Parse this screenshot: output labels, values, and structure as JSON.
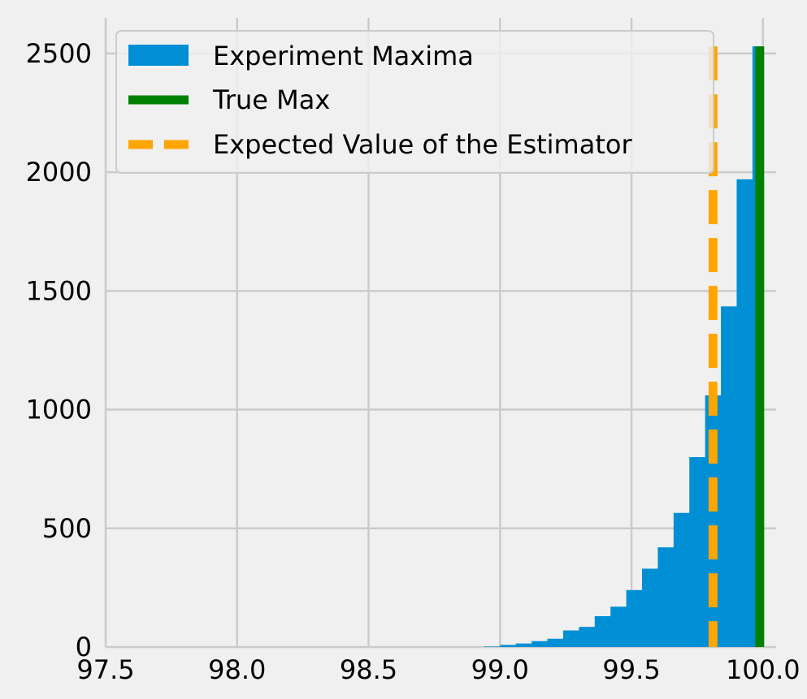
{
  "colors": {
    "background": "#f0f0f0",
    "grid": "#cbcbcb",
    "bars": "#008fd5",
    "true_max": "#008000",
    "expected": "#ffa500",
    "legend_frame": "#cccccc"
  },
  "chart_data": {
    "type": "bar",
    "title": "",
    "xlabel": "",
    "ylabel": "",
    "xlim": [
      97.5,
      100.05
    ],
    "ylim": [
      0,
      2650
    ],
    "x_ticks": [
      "97.5",
      "98.0",
      "98.5",
      "99.0",
      "99.5",
      "100.0"
    ],
    "y_ticks": [
      "0",
      "500",
      "1000",
      "1500",
      "2000",
      "2500"
    ],
    "grid": true,
    "legend_position": "upper-left",
    "series": [
      {
        "name": "Experiment Maxima",
        "type": "histogram",
        "bins": [
          {
            "x0": 98.94,
            "x1": 99.0,
            "count": 2
          },
          {
            "x0": 99.0,
            "x1": 99.06,
            "count": 9
          },
          {
            "x0": 99.06,
            "x1": 99.12,
            "count": 15
          },
          {
            "x0": 99.12,
            "x1": 99.18,
            "count": 25
          },
          {
            "x0": 99.18,
            "x1": 99.24,
            "count": 35
          },
          {
            "x0": 99.24,
            "x1": 99.3,
            "count": 70
          },
          {
            "x0": 99.3,
            "x1": 99.36,
            "count": 85
          },
          {
            "x0": 99.36,
            "x1": 99.42,
            "count": 130
          },
          {
            "x0": 99.42,
            "x1": 99.48,
            "count": 170
          },
          {
            "x0": 99.48,
            "x1": 99.54,
            "count": 240
          },
          {
            "x0": 99.54,
            "x1": 99.6,
            "count": 330
          },
          {
            "x0": 99.6,
            "x1": 99.66,
            "count": 420
          },
          {
            "x0": 99.66,
            "x1": 99.72,
            "count": 565
          },
          {
            "x0": 99.72,
            "x1": 99.78,
            "count": 800
          },
          {
            "x0": 99.78,
            "x1": 99.84,
            "count": 1060
          },
          {
            "x0": 99.84,
            "x1": 99.9,
            "count": 1435
          },
          {
            "x0": 99.9,
            "x1": 99.96,
            "count": 1970
          },
          {
            "x0": 99.96,
            "x1": 100.0,
            "count": 2530
          }
        ]
      },
      {
        "name": "True Max",
        "type": "vline",
        "x": 100.0,
        "style": "solid"
      },
      {
        "name": "Expected Value of the Estimator",
        "type": "vline",
        "x": 99.81,
        "style": "dashed"
      }
    ]
  }
}
